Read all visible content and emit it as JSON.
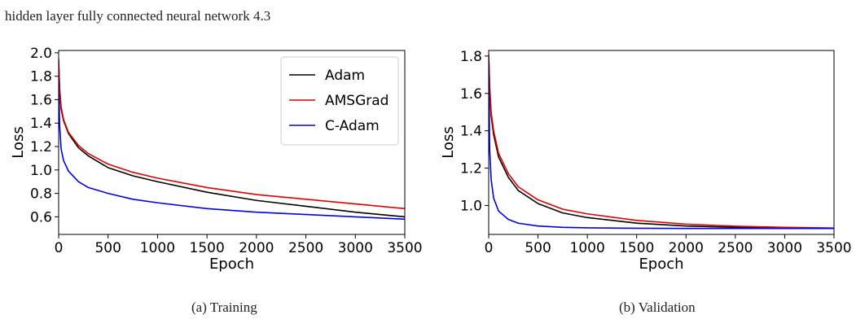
{
  "caption": {
    "line1": "",
    "line2": "hidden layer fully connected neural network 4.3"
  },
  "subcaptions": [
    "(a) Training",
    "(b) Validation"
  ],
  "chart_data": [
    {
      "type": "line",
      "title": "",
      "xlabel": "Epoch",
      "ylabel": "Loss",
      "xlim": [
        0,
        3500
      ],
      "ylim": [
        0.45,
        2.02
      ],
      "xticks": [
        0,
        500,
        1000,
        1500,
        2000,
        2500,
        3000,
        3500
      ],
      "yticks": [
        0.6,
        0.8,
        1.0,
        1.2,
        1.4,
        1.6,
        1.8,
        2.0
      ],
      "ytick_labels": [
        "0.6",
        "0.8",
        "1.0",
        "1.2",
        "1.4",
        "1.6",
        "1.8",
        "2.0"
      ],
      "legend": "top-right",
      "grid": false,
      "series": [
        {
          "name": "Adam",
          "color": "#000000",
          "x": [
            0,
            10,
            25,
            50,
            100,
            200,
            300,
            500,
            750,
            1000,
            1500,
            2000,
            2500,
            3000,
            3500
          ],
          "y": [
            1.93,
            1.68,
            1.52,
            1.42,
            1.31,
            1.19,
            1.12,
            1.02,
            0.95,
            0.9,
            0.81,
            0.74,
            0.69,
            0.64,
            0.6
          ]
        },
        {
          "name": "AMSGrad",
          "color": "#e00000",
          "x": [
            0,
            10,
            25,
            50,
            100,
            200,
            300,
            500,
            750,
            1000,
            1500,
            2000,
            2500,
            3000,
            3500
          ],
          "y": [
            1.95,
            1.7,
            1.54,
            1.43,
            1.32,
            1.21,
            1.14,
            1.05,
            0.98,
            0.93,
            0.85,
            0.79,
            0.75,
            0.71,
            0.67
          ]
        },
        {
          "name": "C-Adam",
          "color": "#0000ee",
          "x": [
            0,
            10,
            25,
            50,
            100,
            200,
            300,
            500,
            750,
            1000,
            1500,
            2000,
            2500,
            3000,
            3500
          ],
          "y": [
            1.78,
            1.38,
            1.18,
            1.08,
            0.99,
            0.9,
            0.85,
            0.8,
            0.75,
            0.72,
            0.67,
            0.64,
            0.62,
            0.6,
            0.58
          ]
        }
      ]
    },
    {
      "type": "line",
      "title": "",
      "xlabel": "Epoch",
      "ylabel": "Loss",
      "xlim": [
        0,
        3500
      ],
      "ylim": [
        0.845,
        1.83
      ],
      "xticks": [
        0,
        500,
        1000,
        1500,
        2000,
        2500,
        3000,
        3500
      ],
      "yticks": [
        1.0,
        1.2,
        1.4,
        1.6,
        1.8
      ],
      "ytick_labels": [
        "1.0",
        "1.2",
        "1.4",
        "1.6",
        "1.8"
      ],
      "legend": "none",
      "grid": false,
      "series": [
        {
          "name": "Adam",
          "color": "#000000",
          "x": [
            0,
            10,
            25,
            50,
            100,
            200,
            300,
            500,
            750,
            1000,
            1500,
            2000,
            2500,
            3000,
            3500
          ],
          "y": [
            1.8,
            1.62,
            1.48,
            1.38,
            1.26,
            1.15,
            1.08,
            1.01,
            0.96,
            0.935,
            0.905,
            0.89,
            0.883,
            0.879,
            0.877
          ]
        },
        {
          "name": "AMSGrad",
          "color": "#e00000",
          "x": [
            0,
            10,
            25,
            50,
            100,
            200,
            300,
            500,
            750,
            1000,
            1500,
            2000,
            2500,
            3000,
            3500
          ],
          "y": [
            1.81,
            1.64,
            1.5,
            1.4,
            1.28,
            1.17,
            1.1,
            1.03,
            0.98,
            0.955,
            0.92,
            0.9,
            0.889,
            0.883,
            0.879
          ]
        },
        {
          "name": "C-Adam",
          "color": "#0000ee",
          "x": [
            0,
            10,
            25,
            50,
            100,
            200,
            300,
            500,
            750,
            1000,
            1500,
            2000,
            2500,
            3000,
            3500
          ],
          "y": [
            1.78,
            1.3,
            1.14,
            1.04,
            0.97,
            0.925,
            0.905,
            0.89,
            0.883,
            0.88,
            0.878,
            0.877,
            0.877,
            0.877,
            0.877
          ]
        }
      ]
    }
  ]
}
